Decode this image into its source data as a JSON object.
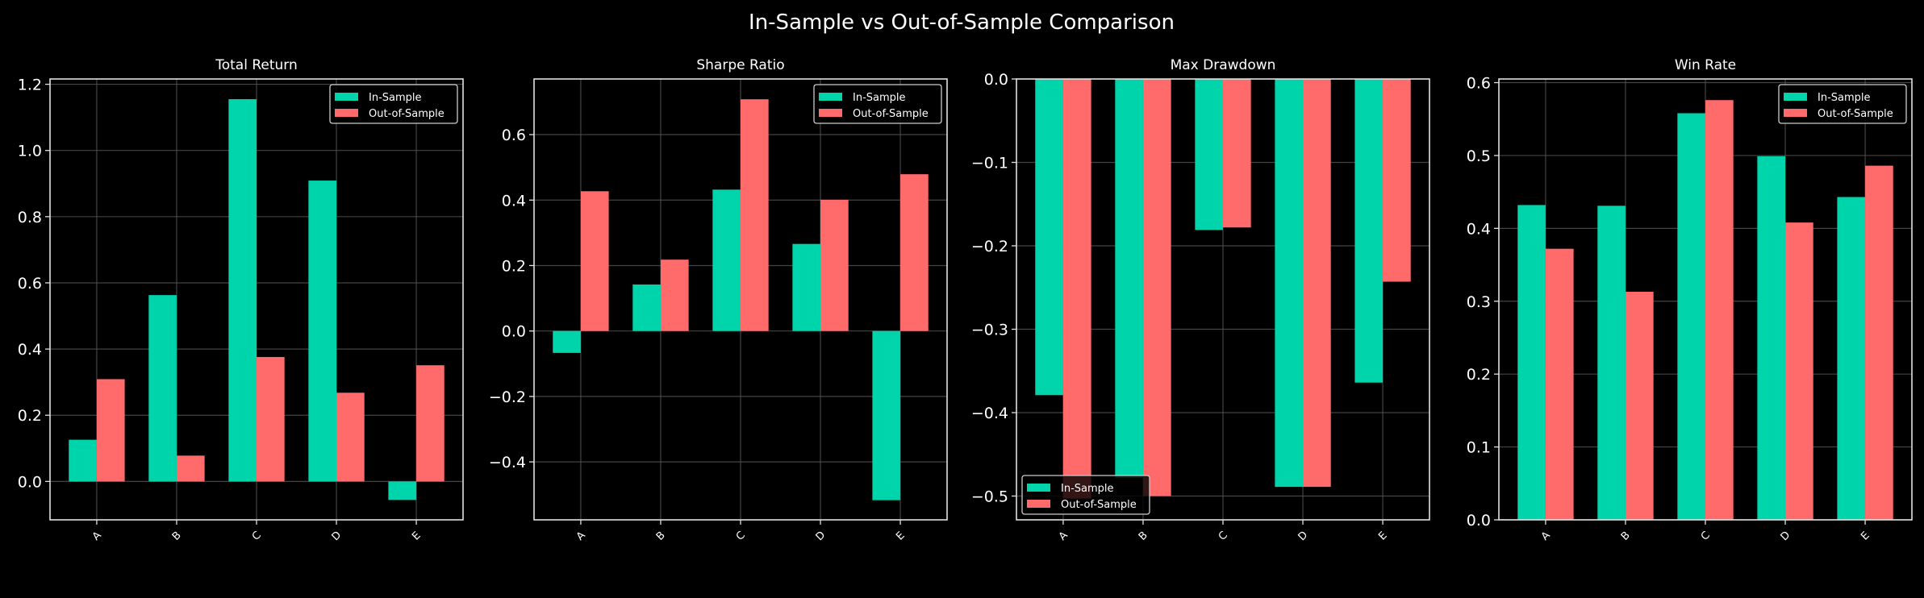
{
  "title": "In-Sample vs Out-of-Sample Comparison",
  "colors": {
    "in_sample": "#00d4aa",
    "out_of_sample": "#ff6b6b",
    "background": "#000000",
    "axis": "#e0e0e0",
    "grid": "#555555"
  },
  "chart_data": [
    {
      "type": "bar",
      "title": "Total Return",
      "categories": [
        "A",
        "B",
        "C",
        "D",
        "E"
      ],
      "series": [
        {
          "name": "In-Sample",
          "values": [
            0.126,
            0.563,
            1.155,
            0.909,
            -0.056
          ]
        },
        {
          "name": "Out-of-Sample",
          "values": [
            0.309,
            0.078,
            0.376,
            0.268,
            0.351
          ]
        }
      ],
      "ylim": [
        -0.116,
        1.216
      ],
      "yticks": [
        0.0,
        0.2,
        0.4,
        0.6,
        0.8,
        1.0,
        1.2
      ],
      "ytick_labels": [
        "0.0",
        "0.2",
        "0.4",
        "0.6",
        "0.8",
        "1.0",
        "1.2"
      ],
      "grid": true,
      "legend": "top-right"
    },
    {
      "type": "bar",
      "title": "Sharpe Ratio",
      "categories": [
        "A",
        "B",
        "C",
        "D",
        "E"
      ],
      "series": [
        {
          "name": "In-Sample",
          "values": [
            -0.067,
            0.142,
            0.432,
            0.266,
            -0.517
          ]
        },
        {
          "name": "Out-of-Sample",
          "values": [
            0.427,
            0.218,
            0.708,
            0.401,
            0.479
          ]
        }
      ],
      "ylim": [
        -0.577,
        0.77
      ],
      "yticks": [
        -0.4,
        -0.2,
        0.0,
        0.2,
        0.4,
        0.6
      ],
      "ytick_labels": [
        "−0.4",
        "−0.2",
        "0.0",
        "0.2",
        "0.4",
        "0.6"
      ],
      "grid": true,
      "legend": "top-right"
    },
    {
      "type": "bar",
      "title": "Max Drawdown",
      "categories": [
        "A",
        "B",
        "C",
        "D",
        "E"
      ],
      "series": [
        {
          "name": "In-Sample",
          "values": [
            -0.379,
            -0.478,
            -0.181,
            -0.489,
            -0.364
          ]
        },
        {
          "name": "Out-of-Sample",
          "values": [
            -0.503,
            -0.5,
            -0.178,
            -0.489,
            -0.243
          ]
        }
      ],
      "ylim": [
        -0.5285,
        0.0
      ],
      "yticks": [
        -0.5,
        -0.4,
        -0.3,
        -0.2,
        -0.1,
        0.0
      ],
      "ytick_labels": [
        "−0.5",
        "−0.4",
        "−0.3",
        "−0.2",
        "−0.1",
        "0.0"
      ],
      "grid": true,
      "legend": "bottom-left"
    },
    {
      "type": "bar",
      "title": "Win Rate",
      "categories": [
        "A",
        "B",
        "C",
        "D",
        "E"
      ],
      "series": [
        {
          "name": "In-Sample",
          "values": [
            0.432,
            0.431,
            0.558,
            0.499,
            0.443
          ]
        },
        {
          "name": "Out-of-Sample",
          "values": [
            0.372,
            0.313,
            0.576,
            0.408,
            0.486
          ]
        }
      ],
      "ylim": [
        0.0,
        0.605
      ],
      "yticks": [
        0.0,
        0.1,
        0.2,
        0.3,
        0.4,
        0.5,
        0.6
      ],
      "ytick_labels": [
        "0.0",
        "0.1",
        "0.2",
        "0.3",
        "0.4",
        "0.5",
        "0.6"
      ],
      "grid": true,
      "legend": "top-right"
    }
  ]
}
